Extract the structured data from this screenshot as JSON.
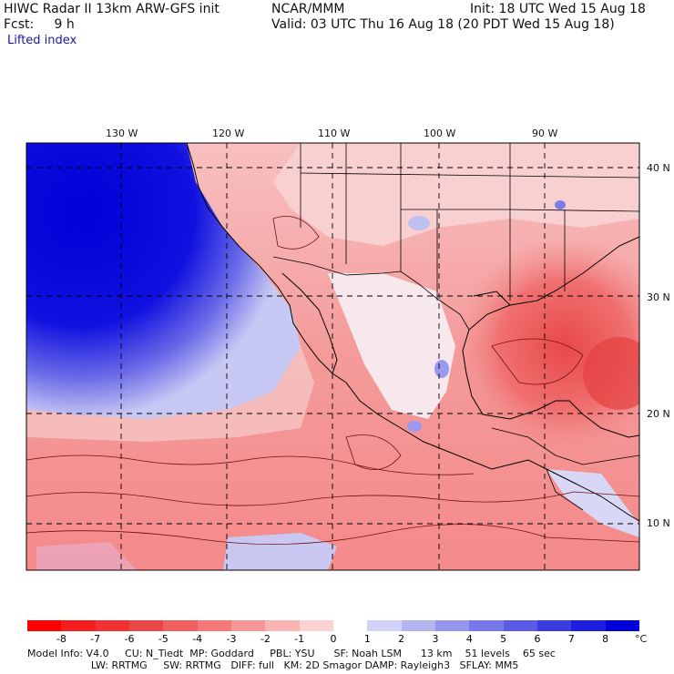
{
  "header": {
    "left_line1": "HIWC Radar II 13km ARW-GFS init",
    "left_line2": "Fcst:     9 h",
    "field": "Lifted index",
    "center_line1": "NCAR/MMM",
    "right_line1": "Init: 18 UTC Wed 15 Aug 18",
    "right_line2": "Valid: 03 UTC Thu 16 Aug 18 (20 PDT Wed 15 Aug 18)"
  },
  "lon_labels": [
    "130 W",
    "120 W",
    "110 W",
    "100 W",
    "90 W"
  ],
  "lat_labels": [
    "40 N",
    "30 N",
    "20 N",
    "10 N"
  ],
  "colorbar": {
    "labels": [
      "-8",
      "-7",
      "-6",
      "-5",
      "-4",
      "-3",
      "-2",
      "-1",
      "0",
      "1",
      "2",
      "3",
      "4",
      "5",
      "6",
      "7",
      "8"
    ],
    "unit": "°C",
    "colors": [
      "#ff0000",
      "#f51e1e",
      "#f03232",
      "#eb4646",
      "#f06060",
      "#f47a7a",
      "#f79696",
      "#fab4b4",
      "#fdd2d2",
      "#ffffff",
      "#d2d2f8",
      "#b4b4f2",
      "#9696ee",
      "#7878ea",
      "#5a5ae6",
      "#3c3ce2",
      "#1e1ee0",
      "#0000dc"
    ]
  },
  "model_info": {
    "line1": "Model Info: V4.0     CU: N_Tiedt  MP: Goddard     PBL: YSU      SF: Noah LSM      13 km    51 levels    65 sec",
    "line2": "                    LW: RRTMG     SW: RRTMG   DIFF: full   KM: 2D Smagor DAMP: Rayleigh3   SFLAY: MM5"
  }
}
